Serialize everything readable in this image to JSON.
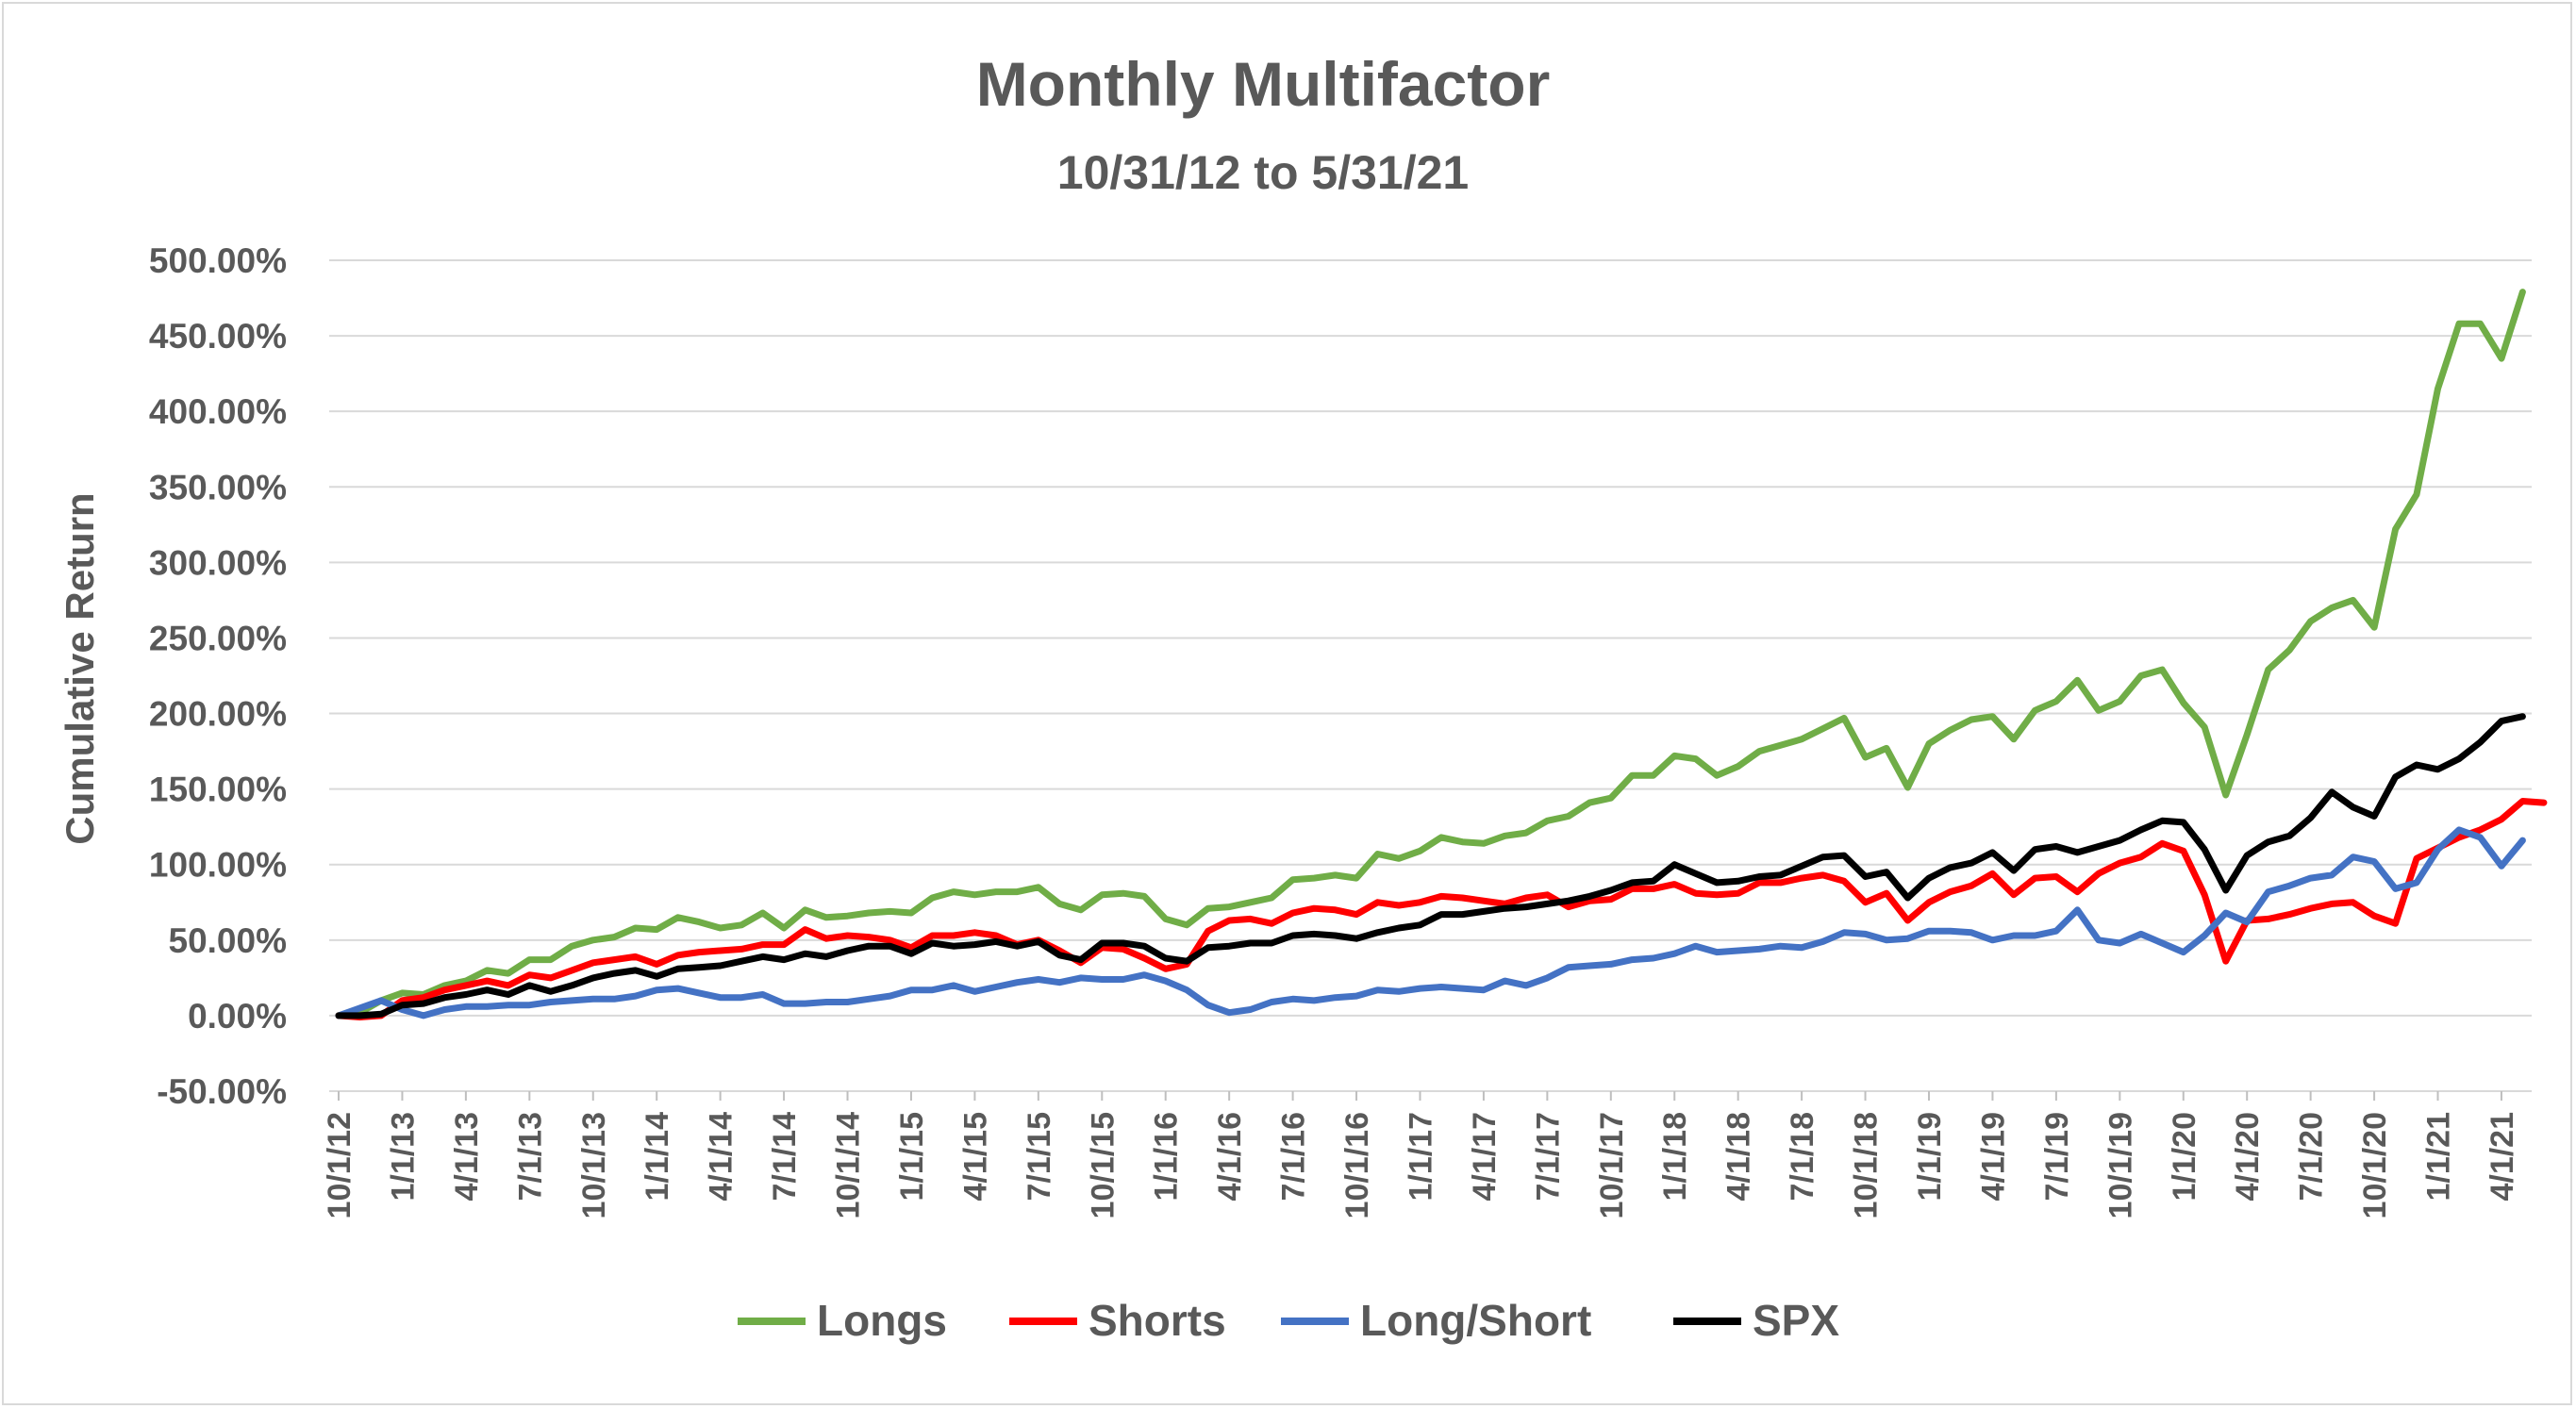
{
  "chart_data": {
    "type": "line",
    "title": "Monthly Multifactor",
    "subtitle": "10/31/12 to 5/31/21",
    "ylabel": "Cumulative Return",
    "xlabel": "",
    "ylim": [
      -50,
      500
    ],
    "yticks": [
      -50,
      0,
      50,
      100,
      150,
      200,
      250,
      300,
      350,
      400,
      450,
      500
    ],
    "ytick_labels": [
      "-50.00%",
      "0.00%",
      "50.00%",
      "100.00%",
      "150.00%",
      "200.00%",
      "250.00%",
      "300.00%",
      "350.00%",
      "400.00%",
      "450.00%",
      "500.00%"
    ],
    "xtick_labels": [
      "10/1/12",
      "1/1/13",
      "4/1/13",
      "7/1/13",
      "10/1/13",
      "1/1/14",
      "4/1/14",
      "7/1/14",
      "10/1/14",
      "1/1/15",
      "4/1/15",
      "7/1/15",
      "10/1/15",
      "1/1/16",
      "4/1/16",
      "7/1/16",
      "10/1/16",
      "1/1/17",
      "4/1/17",
      "7/1/17",
      "10/1/17",
      "1/1/18",
      "4/1/18",
      "7/1/18",
      "10/1/18",
      "1/1/19",
      "4/1/19",
      "7/1/19",
      "10/1/19",
      "1/1/20",
      "4/1/20",
      "7/1/20",
      "10/1/20",
      "1/1/21",
      "4/1/21"
    ],
    "grid": true,
    "legend_position": "bottom",
    "x_start": "10/1/12",
    "x_step": "1 month",
    "series": [
      {
        "name": "Longs",
        "color": "#70ad47",
        "values": [
          0,
          2,
          10,
          15,
          14,
          20,
          23,
          30,
          28,
          37,
          37,
          46,
          50,
          52,
          58,
          57,
          65,
          62,
          58,
          60,
          68,
          58,
          70,
          65,
          66,
          68,
          69,
          68,
          78,
          82,
          80,
          82,
          82,
          85,
          74,
          70,
          80,
          81,
          79,
          64,
          60,
          71,
          72,
          75,
          78,
          90,
          91,
          93,
          91,
          107,
          104,
          109,
          118,
          115,
          114,
          119,
          121,
          129,
          132,
          141,
          144,
          159,
          159,
          172,
          170,
          159,
          165,
          175,
          179,
          183,
          190,
          197,
          171,
          177,
          151,
          180,
          189,
          196,
          198,
          183,
          202,
          208,
          222,
          202,
          208,
          225,
          229,
          207,
          191,
          146,
          186,
          229,
          242,
          261,
          270,
          275,
          257,
          322,
          345,
          415,
          458,
          458,
          435,
          479
        ]
      },
      {
        "name": "Shorts",
        "color": "#ff0000",
        "values": [
          0,
          -1,
          0,
          10,
          12,
          17,
          20,
          23,
          20,
          27,
          25,
          30,
          35,
          37,
          39,
          34,
          40,
          42,
          43,
          44,
          47,
          47,
          57,
          51,
          53,
          52,
          50,
          45,
          53,
          53,
          55,
          53,
          47,
          50,
          43,
          35,
          45,
          44,
          38,
          31,
          34,
          56,
          63,
          64,
          61,
          68,
          71,
          70,
          67,
          75,
          73,
          75,
          79,
          78,
          76,
          74,
          78,
          80,
          72,
          76,
          77,
          84,
          84,
          87,
          81,
          80,
          81,
          88,
          88,
          91,
          93,
          89,
          75,
          81,
          63,
          75,
          82,
          86,
          94,
          80,
          91,
          92,
          82,
          94,
          101,
          105,
          114,
          109,
          80,
          36,
          63,
          64,
          67,
          71,
          74,
          75,
          66,
          61,
          104,
          111,
          118,
          123,
          130,
          142,
          141
        ]
      },
      {
        "name": "Long/Short",
        "color": "#4472c4",
        "values": [
          0,
          5,
          10,
          4,
          0,
          4,
          6,
          6,
          7,
          7,
          9,
          10,
          11,
          11,
          13,
          17,
          18,
          15,
          12,
          12,
          14,
          8,
          8,
          9,
          9,
          11,
          13,
          17,
          17,
          20,
          16,
          19,
          22,
          24,
          22,
          25,
          24,
          24,
          27,
          23,
          17,
          7,
          2,
          4,
          9,
          11,
          10,
          12,
          13,
          17,
          16,
          18,
          19,
          18,
          17,
          23,
          20,
          25,
          32,
          33,
          34,
          37,
          38,
          41,
          46,
          42,
          43,
          44,
          46,
          45,
          49,
          55,
          54,
          50,
          51,
          56,
          56,
          55,
          50,
          53,
          53,
          56,
          70,
          50,
          48,
          54,
          48,
          42,
          53,
          68,
          62,
          82,
          86,
          91,
          93,
          105,
          102,
          84,
          88,
          110,
          123,
          118,
          99,
          116
        ]
      },
      {
        "name": "SPX",
        "color": "#000000",
        "values": [
          0,
          0,
          1,
          7,
          8,
          12,
          14,
          17,
          14,
          20,
          16,
          20,
          25,
          28,
          30,
          26,
          31,
          32,
          33,
          36,
          39,
          37,
          41,
          39,
          43,
          46,
          46,
          41,
          48,
          46,
          47,
          49,
          46,
          49,
          40,
          37,
          48,
          48,
          46,
          38,
          36,
          45,
          46,
          48,
          48,
          53,
          54,
          53,
          51,
          55,
          58,
          60,
          67,
          67,
          69,
          71,
          72,
          74,
          76,
          79,
          83,
          88,
          89,
          100,
          94,
          88,
          89,
          92,
          93,
          99,
          105,
          106,
          92,
          95,
          78,
          91,
          98,
          101,
          108,
          96,
          110,
          112,
          108,
          112,
          116,
          123,
          129,
          128,
          110,
          83,
          106,
          115,
          119,
          131,
          148,
          138,
          132,
          158,
          166,
          163,
          170,
          181,
          195,
          198
        ]
      }
    ]
  }
}
